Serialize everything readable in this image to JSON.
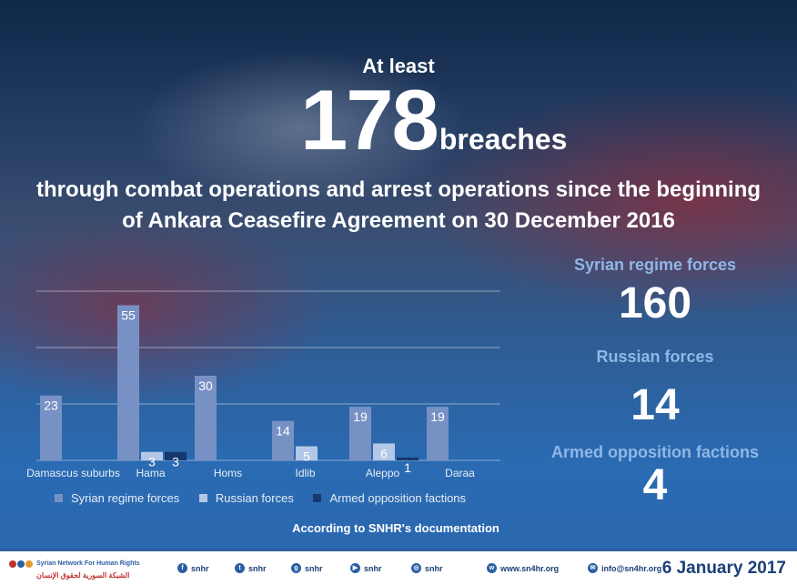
{
  "header": {
    "at_least": "At least",
    "total": "178",
    "unit": "breaches",
    "subtitle_line1": "through combat operations and arrest operations since the beginning",
    "subtitle_line2": "of Ankara Ceasefire Agreement on 30 December 2016"
  },
  "stats": [
    {
      "label": "Syrian regime forces",
      "value": "160"
    },
    {
      "label": "Russian forces",
      "value": "14"
    },
    {
      "label": "Armed opposition factions",
      "value": "4"
    }
  ],
  "colors": {
    "regime": "#7891c4",
    "russian": "#b3c7e6",
    "opposition": "#16386e",
    "stat_label": "#8fb7e8"
  },
  "chart_data": {
    "type": "bar",
    "categories": [
      "Damascus suburbs",
      "Hama",
      "Homs",
      "Idlib",
      "Aleppo",
      "Daraa"
    ],
    "series": [
      {
        "name": "Syrian regime forces",
        "values": [
          23,
          55,
          30,
          14,
          19,
          19
        ]
      },
      {
        "name": "Russian forces",
        "values": [
          null,
          3,
          null,
          5,
          6,
          null
        ]
      },
      {
        "name": "Armed opposition factions",
        "values": [
          null,
          3,
          null,
          null,
          1,
          null
        ]
      }
    ],
    "ylim": [
      0,
      60
    ],
    "grid": true,
    "legend": "bottom"
  },
  "source_note": "According to SNHR's documentation",
  "footer": {
    "org_name_en": "Syrian Network For Human Rights",
    "org_name_ar": "الشبكة السورية لحقوق الإنسان",
    "social": [
      {
        "icon": "facebook-icon",
        "glyph": "f",
        "label": "snhr"
      },
      {
        "icon": "twitter-icon",
        "glyph": "t",
        "label": "snhr"
      },
      {
        "icon": "google-plus-icon",
        "glyph": "g",
        "label": "snhr"
      },
      {
        "icon": "youtube-icon",
        "glyph": "▶",
        "label": "snhr"
      },
      {
        "icon": "instagram-icon",
        "glyph": "◎",
        "label": "snhr"
      },
      {
        "icon": "web-icon",
        "glyph": "w",
        "label": "www.sn4hr.org"
      },
      {
        "icon": "mail-icon",
        "glyph": "✉",
        "label": "info@sn4hr.org"
      }
    ],
    "date": "6 January 2017"
  }
}
